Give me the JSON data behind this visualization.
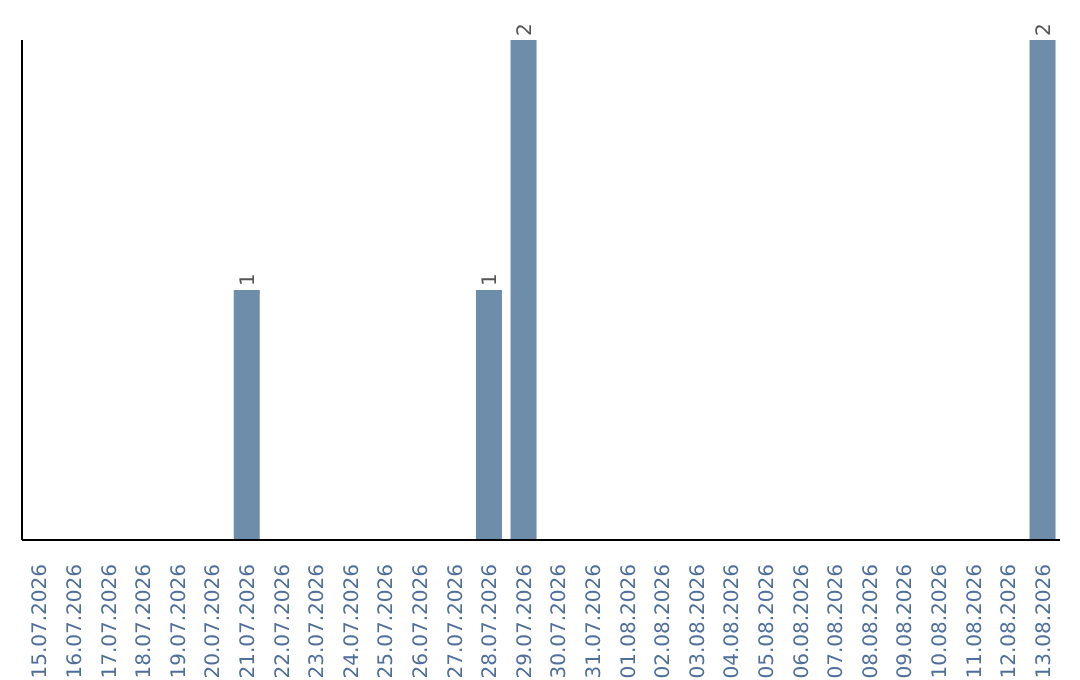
{
  "chart_data": {
    "type": "bar",
    "categories": [
      "15.07.2026",
      "16.07.2026",
      "17.07.2026",
      "18.07.2026",
      "19.07.2026",
      "20.07.2026",
      "21.07.2026",
      "22.07.2026",
      "23.07.2026",
      "24.07.2026",
      "25.07.2026",
      "26.07.2026",
      "27.07.2026",
      "28.07.2026",
      "29.07.2026",
      "30.07.2026",
      "31.07.2026",
      "01.08.2026",
      "02.08.2026",
      "03.08.2026",
      "04.08.2026",
      "05.08.2026",
      "06.08.2026",
      "07.08.2026",
      "08.08.2026",
      "09.08.2026",
      "10.08.2026",
      "11.08.2026",
      "12.08.2026",
      "13.08.2026"
    ],
    "values": [
      0,
      0,
      0,
      0,
      0,
      0,
      1,
      0,
      0,
      0,
      0,
      0,
      0,
      1,
      2,
      0,
      0,
      0,
      0,
      0,
      0,
      0,
      0,
      0,
      0,
      0,
      0,
      0,
      0,
      2
    ],
    "value_labels": [
      null,
      null,
      null,
      null,
      null,
      null,
      "1",
      null,
      null,
      null,
      null,
      null,
      null,
      "1",
      "2",
      null,
      null,
      null,
      null,
      null,
      null,
      null,
      null,
      null,
      null,
      null,
      null,
      null,
      null,
      "2"
    ],
    "color": "#6d8dab",
    "ylim": [
      0,
      2
    ],
    "tick_labels": "x"
  }
}
